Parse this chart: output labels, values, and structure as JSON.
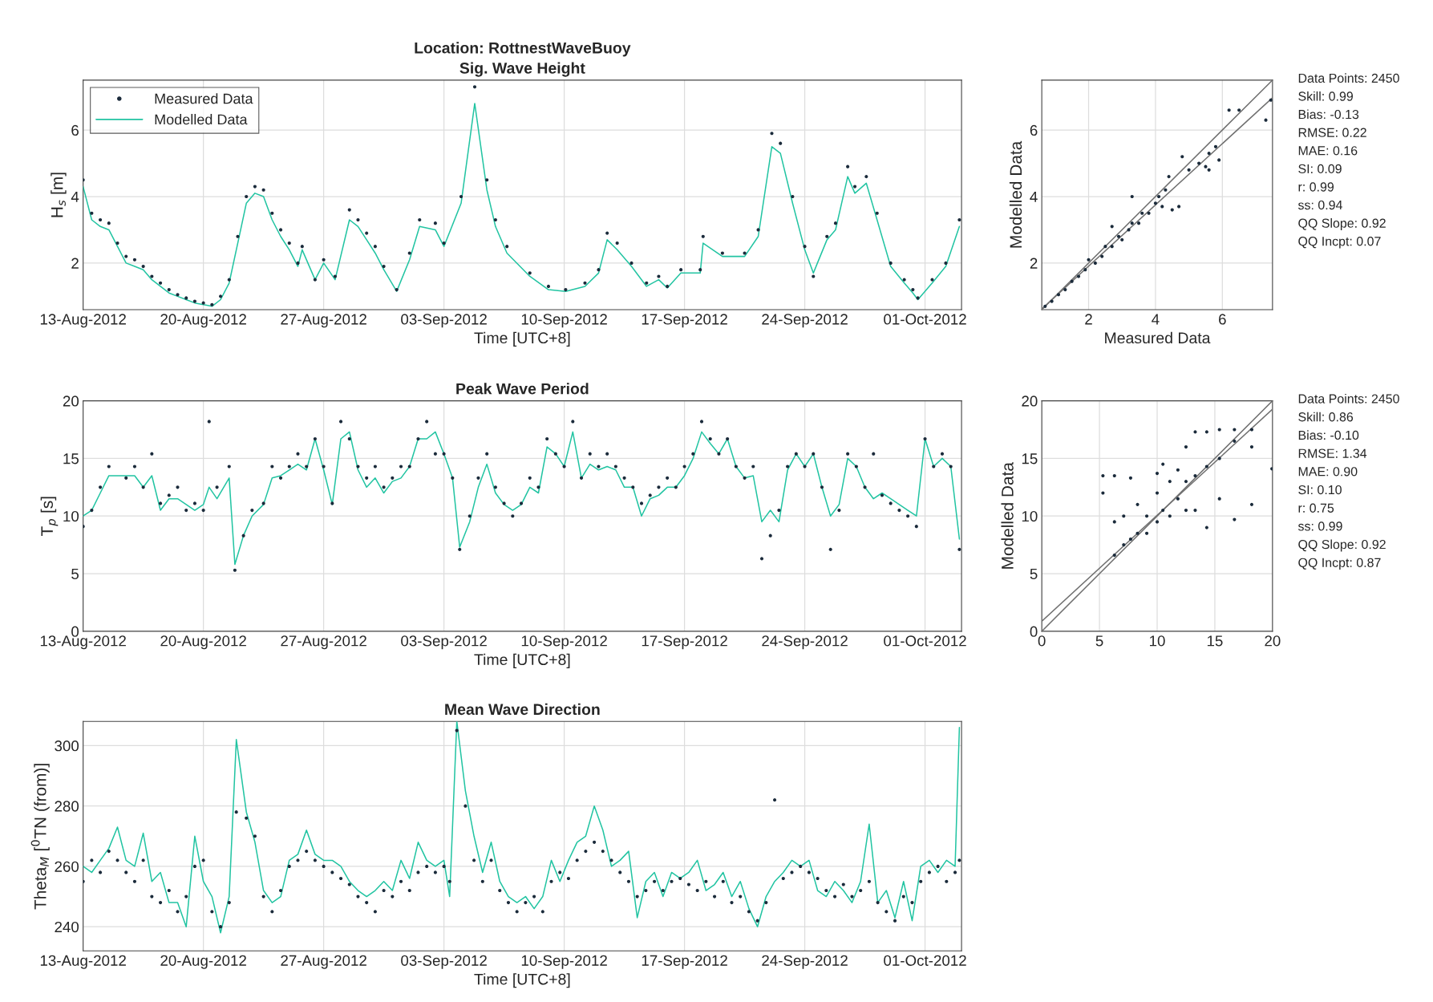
{
  "chart_data": [
    {
      "type": "scatter",
      "title": "Location: RottnestWaveBuoy\nSig. Wave Height",
      "xlabel": "Time [UTC+8]",
      "ylabel": "H$_{s}$ [m]",
      "grid": true,
      "legend": "top left",
      "xlim": [
        "2012-08-13",
        "2012-10-03T03:00"
      ],
      "xticks": [
        {
          "value": "2012-08-13",
          "label": "13-Aug-2012"
        },
        {
          "value": "2012-08-20",
          "label": "20-Aug-2012"
        },
        {
          "value": "2012-08-27",
          "label": "27-Aug-2012"
        },
        {
          "value": "2012-09-03",
          "label": "03-Sep-2012"
        },
        {
          "value": "2012-09-10",
          "label": "10-Sep-2012"
        },
        {
          "value": "2012-09-17",
          "label": "17-Sep-2012"
        },
        {
          "value": "2012-09-24",
          "label": "24-Sep-2012"
        },
        {
          "value": "2012-10-01",
          "label": "01-Oct-2012"
        }
      ],
      "ylim": [
        0.6,
        7.5
      ],
      "yticks": [
        2,
        4,
        6
      ],
      "x": [
        "2012-08-13T00:00",
        "2012-08-13T12:00",
        "2012-08-14T00:00",
        "2012-08-14T12:00",
        "2012-08-15T00:00",
        "2012-08-15T12:00",
        "2012-08-16T00:00",
        "2012-08-16T12:00",
        "2012-08-17T00:00",
        "2012-08-17T12:00",
        "2012-08-18T00:00",
        "2012-08-18T12:00",
        "2012-08-19T00:00",
        "2012-08-19T12:00",
        "2012-08-20T00:00",
        "2012-08-20T12:00",
        "2012-08-21T00:00",
        "2012-08-21T12:00",
        "2012-08-22T00:00",
        "2012-08-22T12:00",
        "2012-08-23T00:00",
        "2012-08-23T12:00",
        "2012-08-24T00:00",
        "2012-08-24T12:00",
        "2012-08-25T00:00",
        "2012-08-25T12:00",
        "2012-08-25T18:00",
        "2012-08-26T12:00",
        "2012-08-27T00:00",
        "2012-08-27T16:00",
        "2012-08-28T12:00",
        "2012-08-29T00:00",
        "2012-08-29T12:00",
        "2012-08-30T00:00",
        "2012-08-30T12:00",
        "2012-08-31T06:00",
        "2012-09-01T00:00",
        "2012-09-01T14:00",
        "2012-09-02T12:00",
        "2012-09-03T00:00",
        "2012-09-04T00:00",
        "2012-09-04T19:00",
        "2012-09-05T12:00",
        "2012-09-06T00:00",
        "2012-09-06T16:00",
        "2012-09-08T00:00",
        "2012-09-09T02:00",
        "2012-09-10T02:00",
        "2012-09-11T05:00",
        "2012-09-12T00:00",
        "2012-09-12T12:00",
        "2012-09-13T02:00",
        "2012-09-13T22:00",
        "2012-09-14T19:00",
        "2012-09-15T12:00",
        "2012-09-16T00:00",
        "2012-09-16T19:00",
        "2012-09-17T22:00",
        "2012-09-18T02:00",
        "2012-09-19T05:00",
        "2012-09-20T12:00",
        "2012-09-21T07:00",
        "2012-09-22T02:00",
        "2012-09-22T14:00",
        "2012-09-23T07:00",
        "2012-09-24T00:00",
        "2012-09-24T12:00",
        "2012-09-25T07:00",
        "2012-09-25T19:00",
        "2012-09-26T12:00",
        "2012-09-26T22:00",
        "2012-09-27T14:00",
        "2012-09-28T05:00",
        "2012-09-29T00:00",
        "2012-09-29T19:00",
        "2012-09-30T07:00",
        "2012-09-30T14:00",
        "2012-10-01T10:00",
        "2012-10-02T05:00",
        "2012-10-03T00:00"
      ],
      "series": [
        {
          "name": "Measured Data",
          "marker": "circle",
          "color": "#1b2b3b",
          "values": [
            4.5,
            3.5,
            3.3,
            3.2,
            2.6,
            2.2,
            2.1,
            1.9,
            1.6,
            1.4,
            1.2,
            1.05,
            0.95,
            0.85,
            0.8,
            0.75,
            1.0,
            1.5,
            2.8,
            4.0,
            4.3,
            4.2,
            3.5,
            3.0,
            2.6,
            2.0,
            2.5,
            1.5,
            2.1,
            1.6,
            3.6,
            3.3,
            2.9,
            2.5,
            1.9,
            1.2,
            2.3,
            3.3,
            3.2,
            2.6,
            4.0,
            7.3,
            4.5,
            3.3,
            2.5,
            1.7,
            1.3,
            1.2,
            1.4,
            1.8,
            2.9,
            2.6,
            2.0,
            1.4,
            1.6,
            1.3,
            1.8,
            1.8,
            2.8,
            2.3,
            2.3,
            3.0,
            5.9,
            5.6,
            4.0,
            2.5,
            1.6,
            2.8,
            3.2,
            4.9,
            4.3,
            4.6,
            3.5,
            2.0,
            1.5,
            1.2,
            0.95,
            1.5,
            2.0,
            3.3
          ]
        },
        {
          "name": "Modelled Data",
          "type": "line",
          "color": "#22c4a2",
          "values": [
            4.3,
            3.3,
            3.1,
            3.0,
            2.5,
            2.0,
            1.9,
            1.8,
            1.5,
            1.3,
            1.1,
            1.0,
            0.9,
            0.8,
            0.75,
            0.7,
            0.9,
            1.4,
            2.6,
            3.8,
            4.1,
            4.0,
            3.3,
            2.8,
            2.4,
            1.9,
            2.4,
            1.5,
            2.0,
            1.5,
            3.3,
            3.1,
            2.7,
            2.3,
            1.8,
            1.15,
            2.1,
            3.1,
            3.0,
            2.5,
            3.8,
            6.8,
            4.2,
            3.1,
            2.3,
            1.6,
            1.2,
            1.15,
            1.3,
            1.7,
            2.7,
            2.4,
            1.9,
            1.3,
            1.5,
            1.25,
            1.7,
            1.7,
            2.6,
            2.2,
            2.2,
            2.8,
            5.5,
            5.3,
            3.8,
            2.4,
            1.7,
            2.7,
            3.0,
            4.6,
            4.1,
            4.4,
            3.3,
            1.9,
            1.4,
            1.1,
            0.9,
            1.4,
            1.9,
            3.1
          ]
        }
      ]
    },
    {
      "type": "scatter",
      "title": "Peak Wave Period",
      "xlabel": "Time [UTC+8]",
      "ylabel": "T$_{p}$ [s]",
      "grid": true,
      "xlim": [
        "2012-08-13",
        "2012-10-03T03:00"
      ],
      "xticks": [
        {
          "value": "2012-08-13",
          "label": "13-Aug-2012"
        },
        {
          "value": "2012-08-20",
          "label": "20-Aug-2012"
        },
        {
          "value": "2012-08-27",
          "label": "27-Aug-2012"
        },
        {
          "value": "2012-09-03",
          "label": "03-Sep-2012"
        },
        {
          "value": "2012-09-10",
          "label": "10-Sep-2012"
        },
        {
          "value": "2012-09-17",
          "label": "17-Sep-2012"
        },
        {
          "value": "2012-09-24",
          "label": "24-Sep-2012"
        },
        {
          "value": "2012-10-01",
          "label": "01-Oct-2012"
        }
      ],
      "ylim": [
        0,
        20
      ],
      "yticks": [
        0,
        5,
        10,
        15,
        20
      ],
      "x": [
        "2012-08-13T00:00",
        "2012-08-13T12:00",
        "2012-08-14T00:00",
        "2012-08-14T12:00",
        "2012-08-15T12:00",
        "2012-08-16T00:00",
        "2012-08-16T12:00",
        "2012-08-17T00:00",
        "2012-08-17T12:00",
        "2012-08-18T00:00",
        "2012-08-18T12:00",
        "2012-08-19T00:00",
        "2012-08-19T12:00",
        "2012-08-20T00:00",
        "2012-08-20T08:00",
        "2012-08-20T19:00",
        "2012-08-21T12:00",
        "2012-08-21T20:00",
        "2012-08-22T08:00",
        "2012-08-22T20:00",
        "2012-08-23T12:00",
        "2012-08-24T00:00",
        "2012-08-24T12:00",
        "2012-08-25T00:00",
        "2012-08-25T12:00",
        "2012-08-26T00:00",
        "2012-08-26T12:00",
        "2012-08-27T00:00",
        "2012-08-27T12:00",
        "2012-08-28T00:00",
        "2012-08-28T12:00",
        "2012-08-29T00:00",
        "2012-08-29T12:00",
        "2012-08-30T00:00",
        "2012-08-30T12:00",
        "2012-08-31T00:00",
        "2012-08-31T12:00",
        "2012-09-01T00:00",
        "2012-09-01T12:00",
        "2012-09-02T00:00",
        "2012-09-02T12:00",
        "2012-09-03T00:00",
        "2012-09-03T12:00",
        "2012-09-03T22:00",
        "2012-09-04T12:00",
        "2012-09-05T00:00",
        "2012-09-05T12:00",
        "2012-09-06T00:00",
        "2012-09-06T12:00",
        "2012-09-07T00:00",
        "2012-09-07T12:00",
        "2012-09-08T00:00",
        "2012-09-08T12:00",
        "2012-09-09T00:00",
        "2012-09-09T12:00",
        "2012-09-10T00:00",
        "2012-09-10T12:00",
        "2012-09-11T00:00",
        "2012-09-11T12:00",
        "2012-09-12T00:00",
        "2012-09-12T12:00",
        "2012-09-13T00:00",
        "2012-09-13T12:00",
        "2012-09-14T00:00",
        "2012-09-14T12:00",
        "2012-09-15T00:00",
        "2012-09-15T12:00",
        "2012-09-16T00:00",
        "2012-09-16T12:00",
        "2012-09-17T00:00",
        "2012-09-17T12:00",
        "2012-09-18T00:00",
        "2012-09-18T12:00",
        "2012-09-19T00:00",
        "2012-09-19T12:00",
        "2012-09-20T00:00",
        "2012-09-20T12:00",
        "2012-09-21T00:00",
        "2012-09-21T12:00",
        "2012-09-22T00:00",
        "2012-09-22T12:00",
        "2012-09-23T00:00",
        "2012-09-23T12:00",
        "2012-09-24T00:00",
        "2012-09-24T12:00",
        "2012-09-25T00:00",
        "2012-09-25T12:00",
        "2012-09-26T00:00",
        "2012-09-26T12:00",
        "2012-09-27T00:00",
        "2012-09-27T12:00",
        "2012-09-28T00:00",
        "2012-09-28T12:00",
        "2012-09-29T00:00",
        "2012-09-29T12:00",
        "2012-09-30T00:00",
        "2012-09-30T12:00",
        "2012-10-01T00:00",
        "2012-10-01T12:00",
        "2012-10-02T00:00",
        "2012-10-02T12:00",
        "2012-10-03T00:00"
      ],
      "series": [
        {
          "marker": "circle",
          "color": "#1b2b3b",
          "values": [
            9.1,
            10.5,
            12.5,
            14.3,
            13.3,
            14.3,
            12.5,
            15.4,
            11.1,
            11.8,
            12.5,
            10.5,
            11.1,
            10.5,
            18.2,
            12.5,
            14.3,
            5.3,
            8.3,
            10.5,
            11.1,
            14.3,
            13.3,
            14.3,
            15.4,
            14.3,
            16.7,
            14.3,
            11.1,
            18.2,
            16.7,
            14.3,
            13.3,
            14.3,
            12.5,
            13.3,
            14.3,
            14.3,
            16.7,
            18.2,
            15.4,
            15.4,
            13.3,
            7.1,
            10,
            13.3,
            15.4,
            12.5,
            11.1,
            10,
            11.1,
            13.3,
            12.5,
            16.7,
            15.4,
            14.3,
            18.2,
            13.3,
            15.4,
            14.3,
            15.4,
            14.3,
            13.3,
            12.5,
            11.1,
            11.8,
            12.5,
            13.3,
            12.5,
            14.3,
            15.4,
            18.2,
            16.7,
            15.4,
            16.7,
            14.3,
            13.3,
            14.3,
            6.3,
            8.3,
            10.5,
            14.3,
            15.4,
            14.3,
            15.4,
            12.5,
            7.1,
            10.5,
            15.4,
            14.3,
            12.5,
            15.4,
            11.8,
            11.1,
            10.5,
            10,
            9.1,
            16.7,
            14.3,
            15.4,
            14.3,
            7.1
          ]
        },
        {
          "type": "line",
          "color": "#22c4a2",
          "values": [
            10,
            10.5,
            12,
            13.5,
            13.5,
            13.5,
            12.5,
            13.5,
            10.5,
            11.5,
            11.5,
            11,
            10.5,
            11,
            12.5,
            11.5,
            13.3,
            5.8,
            8.3,
            10,
            11,
            13.3,
            13.5,
            14,
            14.5,
            14,
            16.7,
            14,
            11,
            16.7,
            17.3,
            14,
            12.5,
            13.3,
            12,
            13,
            13.3,
            14.3,
            16.7,
            16.7,
            17.3,
            15.4,
            13.3,
            7.3,
            9.5,
            12.5,
            14.5,
            12,
            11,
            10.5,
            11,
            12.5,
            12,
            16,
            15.4,
            14.3,
            17.3,
            13.3,
            14.5,
            14,
            14.3,
            14,
            12.5,
            12.5,
            10,
            11.5,
            11.8,
            12.5,
            12.5,
            13.5,
            15,
            17.3,
            16.3,
            15.4,
            16.7,
            14.3,
            13.3,
            13.5,
            9.5,
            10.5,
            9.5,
            14,
            15.4,
            14.3,
            15.4,
            12.5,
            10,
            11,
            15,
            14.3,
            12.5,
            11.5,
            12,
            11.5,
            11,
            10.5,
            10,
            16.7,
            14.3,
            15,
            14.3,
            8
          ]
        }
      ]
    },
    {
      "type": "scatter",
      "title": "Mean Wave Direction",
      "xlabel": "Time [UTC+8]",
      "ylabel": "Theta$_{M}$ [$^{0}$TN (from)]",
      "grid": true,
      "xlim": [
        "2012-08-13",
        "2012-10-03T03:00"
      ],
      "xticks": [
        {
          "value": "2012-08-13",
          "label": "13-Aug-2012"
        },
        {
          "value": "2012-08-20",
          "label": "20-Aug-2012"
        },
        {
          "value": "2012-08-27",
          "label": "27-Aug-2012"
        },
        {
          "value": "2012-09-03",
          "label": "03-Sep-2012"
        },
        {
          "value": "2012-09-10",
          "label": "10-Sep-2012"
        },
        {
          "value": "2012-09-17",
          "label": "17-Sep-2012"
        },
        {
          "value": "2012-09-24",
          "label": "24-Sep-2012"
        },
        {
          "value": "2012-10-01",
          "label": "01-Oct-2012"
        }
      ],
      "ylim": [
        232,
        308
      ],
      "yticks": [
        240,
        260,
        280,
        300
      ],
      "x": [
        "2012-08-13T00:00",
        "2012-08-13T12:00",
        "2012-08-14T00:00",
        "2012-08-14T12:00",
        "2012-08-15T00:00",
        "2012-08-15T12:00",
        "2012-08-16T00:00",
        "2012-08-16T12:00",
        "2012-08-17T00:00",
        "2012-08-17T12:00",
        "2012-08-18T00:00",
        "2012-08-18T12:00",
        "2012-08-19T00:00",
        "2012-08-19T12:00",
        "2012-08-20T00:00",
        "2012-08-20T12:00",
        "2012-08-21T00:00",
        "2012-08-21T12:00",
        "2012-08-21T22:00",
        "2012-08-22T12:00",
        "2012-08-23T00:00",
        "2012-08-23T12:00",
        "2012-08-24T00:00",
        "2012-08-24T12:00",
        "2012-08-25T00:00",
        "2012-08-25T12:00",
        "2012-08-26T00:00",
        "2012-08-26T12:00",
        "2012-08-27T00:00",
        "2012-08-27T12:00",
        "2012-08-28T00:00",
        "2012-08-28T12:00",
        "2012-08-29T00:00",
        "2012-08-29T12:00",
        "2012-08-30T00:00",
        "2012-08-30T12:00",
        "2012-08-31T00:00",
        "2012-08-31T12:00",
        "2012-09-01T00:00",
        "2012-09-01T12:00",
        "2012-09-02T00:00",
        "2012-09-02T12:00",
        "2012-09-03T00:00",
        "2012-09-03T08:00",
        "2012-09-03T18:00",
        "2012-09-04T06:00",
        "2012-09-04T18:00",
        "2012-09-05T06:00",
        "2012-09-05T18:00",
        "2012-09-06T06:00",
        "2012-09-06T18:00",
        "2012-09-07T06:00",
        "2012-09-07T18:00",
        "2012-09-08T06:00",
        "2012-09-08T18:00",
        "2012-09-09T06:00",
        "2012-09-09T18:00",
        "2012-09-10T06:00",
        "2012-09-10T18:00",
        "2012-09-11T06:00",
        "2012-09-11T18:00",
        "2012-09-12T06:00",
        "2012-09-12T18:00",
        "2012-09-13T06:00",
        "2012-09-13T18:00",
        "2012-09-14T06:00",
        "2012-09-14T18:00",
        "2012-09-15T06:00",
        "2012-09-15T18:00",
        "2012-09-16T06:00",
        "2012-09-16T18:00",
        "2012-09-17T06:00",
        "2012-09-17T18:00",
        "2012-09-18T06:00",
        "2012-09-18T18:00",
        "2012-09-19T06:00",
        "2012-09-19T18:00",
        "2012-09-20T06:00",
        "2012-09-20T18:00",
        "2012-09-21T06:00",
        "2012-09-21T18:00",
        "2012-09-22T06:00",
        "2012-09-22T18:00",
        "2012-09-23T06:00",
        "2012-09-23T18:00",
        "2012-09-24T06:00",
        "2012-09-24T18:00",
        "2012-09-25T06:00",
        "2012-09-25T18:00",
        "2012-09-26T06:00",
        "2012-09-26T18:00",
        "2012-09-27T06:00",
        "2012-09-27T18:00",
        "2012-09-28T06:00",
        "2012-09-28T18:00",
        "2012-09-29T06:00",
        "2012-09-29T18:00",
        "2012-09-30T06:00",
        "2012-09-30T18:00",
        "2012-10-01T06:00",
        "2012-10-01T18:00",
        "2012-10-02T06:00",
        "2012-10-02T18:00",
        "2012-10-03T00:00"
      ],
      "series": [
        {
          "marker": "circle",
          "color": "#1b2b3b",
          "values": [
            255,
            262,
            258,
            265,
            262,
            258,
            255,
            262,
            250,
            248,
            252,
            245,
            250,
            260,
            262,
            245,
            240,
            248,
            278,
            276,
            270,
            250,
            245,
            252,
            260,
            262,
            265,
            262,
            260,
            258,
            256,
            254,
            250,
            248,
            245,
            252,
            250,
            255,
            252,
            258,
            260,
            258,
            260,
            255,
            305,
            280,
            262,
            255,
            262,
            252,
            248,
            245,
            248,
            250,
            245,
            255,
            258,
            256,
            262,
            265,
            268,
            265,
            262,
            258,
            255,
            250,
            252,
            255,
            252,
            255,
            256,
            254,
            252,
            255,
            250,
            255,
            248,
            250,
            245,
            242,
            248,
            282,
            256,
            258,
            260,
            258,
            256,
            252,
            250,
            254,
            250,
            252,
            255,
            248,
            245,
            242,
            250,
            248,
            255,
            258,
            260,
            255,
            258,
            262
          ]
        },
        {
          "type": "line",
          "color": "#22c4a2",
          "values": [
            260,
            258,
            262,
            266,
            273,
            262,
            260,
            271,
            255,
            258,
            248,
            248,
            240,
            270,
            255,
            250,
            238,
            250,
            302,
            278,
            268,
            252,
            248,
            250,
            262,
            264,
            272,
            264,
            262,
            262,
            260,
            255,
            252,
            250,
            252,
            255,
            252,
            262,
            256,
            268,
            262,
            260,
            262,
            250,
            308,
            285,
            270,
            258,
            268,
            255,
            250,
            248,
            250,
            246,
            250,
            262,
            255,
            262,
            268,
            270,
            280,
            272,
            260,
            262,
            265,
            243,
            255,
            258,
            250,
            258,
            256,
            258,
            262,
            252,
            254,
            258,
            250,
            255,
            246,
            240,
            250,
            255,
            258,
            262,
            260,
            262,
            252,
            250,
            255,
            252,
            248,
            255,
            274,
            248,
            252,
            243,
            255,
            242,
            260,
            262,
            258,
            262,
            260,
            306
          ]
        }
      ]
    },
    {
      "type": "scatter",
      "xlabel": "Measured Data",
      "ylabel": "Modelled Data",
      "grid": true,
      "xlim": [
        0.6,
        7.5
      ],
      "xticks": [
        2,
        4,
        6
      ],
      "ylim": [
        0.6,
        7.5
      ],
      "yticks": [
        2,
        4,
        6
      ],
      "annotations": [
        "Data Points: 2450",
        "Skill: 0.99",
        "Bias: -0.13",
        "RMSE: 0.22",
        "MAE: 0.16",
        "SI: 0.09",
        "r: 0.99",
        "ss: 0.94",
        "QQ Slope: 0.92",
        "QQ Incpt: 0.07"
      ],
      "series": [
        {
          "marker": "circle",
          "color": "#1b2b3b",
          "x": [
            0.7,
            0.9,
            1.1,
            1.3,
            1.5,
            1.7,
            1.9,
            2.0,
            2.2,
            2.4,
            2.5,
            2.7,
            2.9,
            3.0,
            3.2,
            3.3,
            3.5,
            3.6,
            3.8,
            4.0,
            4.1,
            4.2,
            4.3,
            4.5,
            4.4,
            4.7,
            3.3,
            2.7,
            5.0,
            5.3,
            5.5,
            5.6,
            5.8,
            5.9,
            5.6,
            6.2,
            6.5,
            7.3,
            7.45,
            4.8
          ],
          "values": [
            0.7,
            0.85,
            1.05,
            1.2,
            1.45,
            1.6,
            1.8,
            2.1,
            2.0,
            2.2,
            2.5,
            2.5,
            2.8,
            2.7,
            3.0,
            3.2,
            3.2,
            3.5,
            3.5,
            3.8,
            4.0,
            3.7,
            4.2,
            3.6,
            4.6,
            3.7,
            4.0,
            3.1,
            4.8,
            5.0,
            4.9,
            5.3,
            5.5,
            5.1,
            4.8,
            6.6,
            6.6,
            6.3,
            6.9,
            5.2
          ]
        },
        {
          "type": "line",
          "color": "#707070",
          "x": [
            0.6,
            7.5
          ],
          "values": [
            0.6,
            7.5
          ]
        },
        {
          "type": "line",
          "color": "#707070",
          "x": [
            0.6,
            7.5
          ],
          "values": [
            0.62,
            6.97
          ]
        }
      ]
    },
    {
      "type": "scatter",
      "ylabel": "Modelled Data",
      "grid": true,
      "xlim": [
        0,
        20
      ],
      "xticks": [
        0,
        5,
        10,
        15,
        20
      ],
      "ylim": [
        0,
        20
      ],
      "yticks": [
        0,
        5,
        10,
        15,
        20
      ],
      "annotations": [
        "Data Points: 2450",
        "Skill: 0.86",
        "Bias: -0.10",
        "RMSE: 1.34",
        "MAE: 0.90",
        "SI: 0.10",
        "r: 0.75",
        "ss: 0.99",
        "QQ Slope: 0.92",
        "QQ Incpt: 0.87"
      ],
      "series": [
        {
          "marker": "circle",
          "color": "#1b2b3b",
          "x": [
            5.3,
            5.3,
            6.3,
            6.3,
            6.3,
            7.1,
            7.1,
            7.7,
            7.7,
            8.3,
            8.3,
            9.1,
            9.1,
            10,
            10,
            10,
            10.5,
            10.5,
            11.1,
            11.1,
            11.8,
            11.8,
            12.5,
            12.5,
            12.5,
            13.3,
            13.3,
            13.3,
            14.3,
            14.3,
            14.3,
            15.4,
            15.4,
            15.4,
            16.7,
            16.7,
            16.7,
            18.2,
            18.2,
            18.2,
            19.95
          ],
          "values": [
            13.5,
            12.0,
            6.6,
            9.5,
            13.5,
            7.5,
            10.0,
            8.0,
            13.3,
            8.5,
            11.0,
            8.5,
            10.0,
            9.5,
            12.0,
            13.7,
            10.5,
            14.5,
            10.0,
            13.0,
            11.5,
            14.0,
            10.5,
            13.0,
            16.0,
            10.5,
            13.5,
            17.3,
            9.0,
            14.3,
            17.3,
            11.5,
            15.0,
            17.5,
            9.7,
            16.5,
            17.5,
            11.0,
            16.0,
            17.5,
            14.1
          ]
        },
        {
          "type": "line",
          "color": "#707070",
          "x": [
            0,
            20
          ],
          "values": [
            0,
            20
          ]
        },
        {
          "type": "line",
          "color": "#707070",
          "x": [
            0,
            20
          ],
          "values": [
            0.87,
            19.27
          ]
        }
      ]
    }
  ]
}
